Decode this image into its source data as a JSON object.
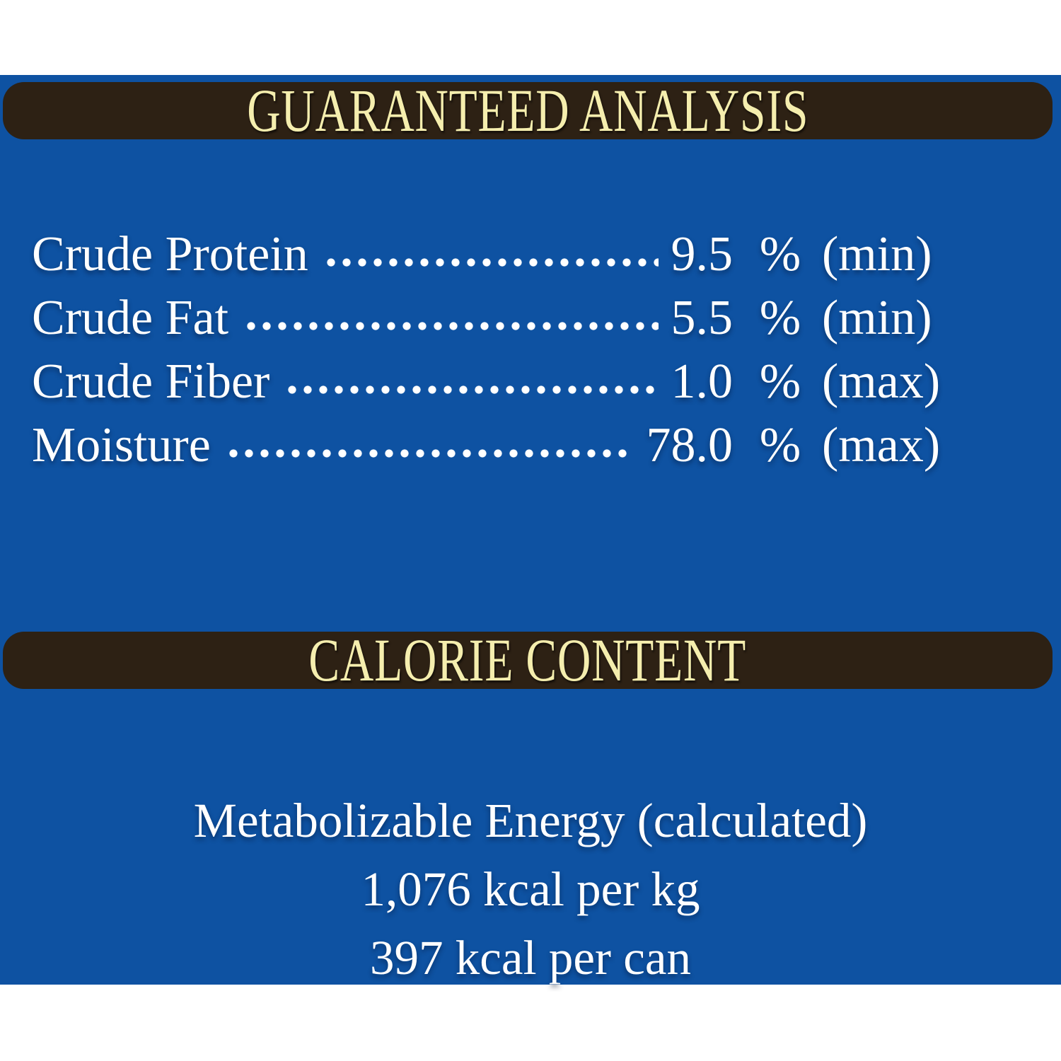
{
  "colors": {
    "page_white": "#ffffff",
    "panel_blue": "#0e52a2",
    "bar_brown": "#2d2114",
    "header_cream": "#f5eeae",
    "text_white": "#ffffff"
  },
  "guaranteed_analysis": {
    "header": "GUARANTEED ANALYSIS",
    "rows": [
      {
        "label": "Crude Protein",
        "value": "9.5",
        "unit": "%",
        "bound": "(min)"
      },
      {
        "label": "Crude Fat",
        "value": "5.5",
        "unit": "%",
        "bound": "(min)"
      },
      {
        "label": "Crude Fiber",
        "value": "1.0",
        "unit": "%",
        "bound": "(max)"
      },
      {
        "label": "Moisture",
        "value": "78.0",
        "unit": "%",
        "bound": "(max)"
      }
    ]
  },
  "calorie_content": {
    "header": "CALORIE CONTENT",
    "lines": [
      "Metabolizable Energy (calculated)",
      "1,076 kcal per kg",
      "397 kcal per can"
    ]
  }
}
